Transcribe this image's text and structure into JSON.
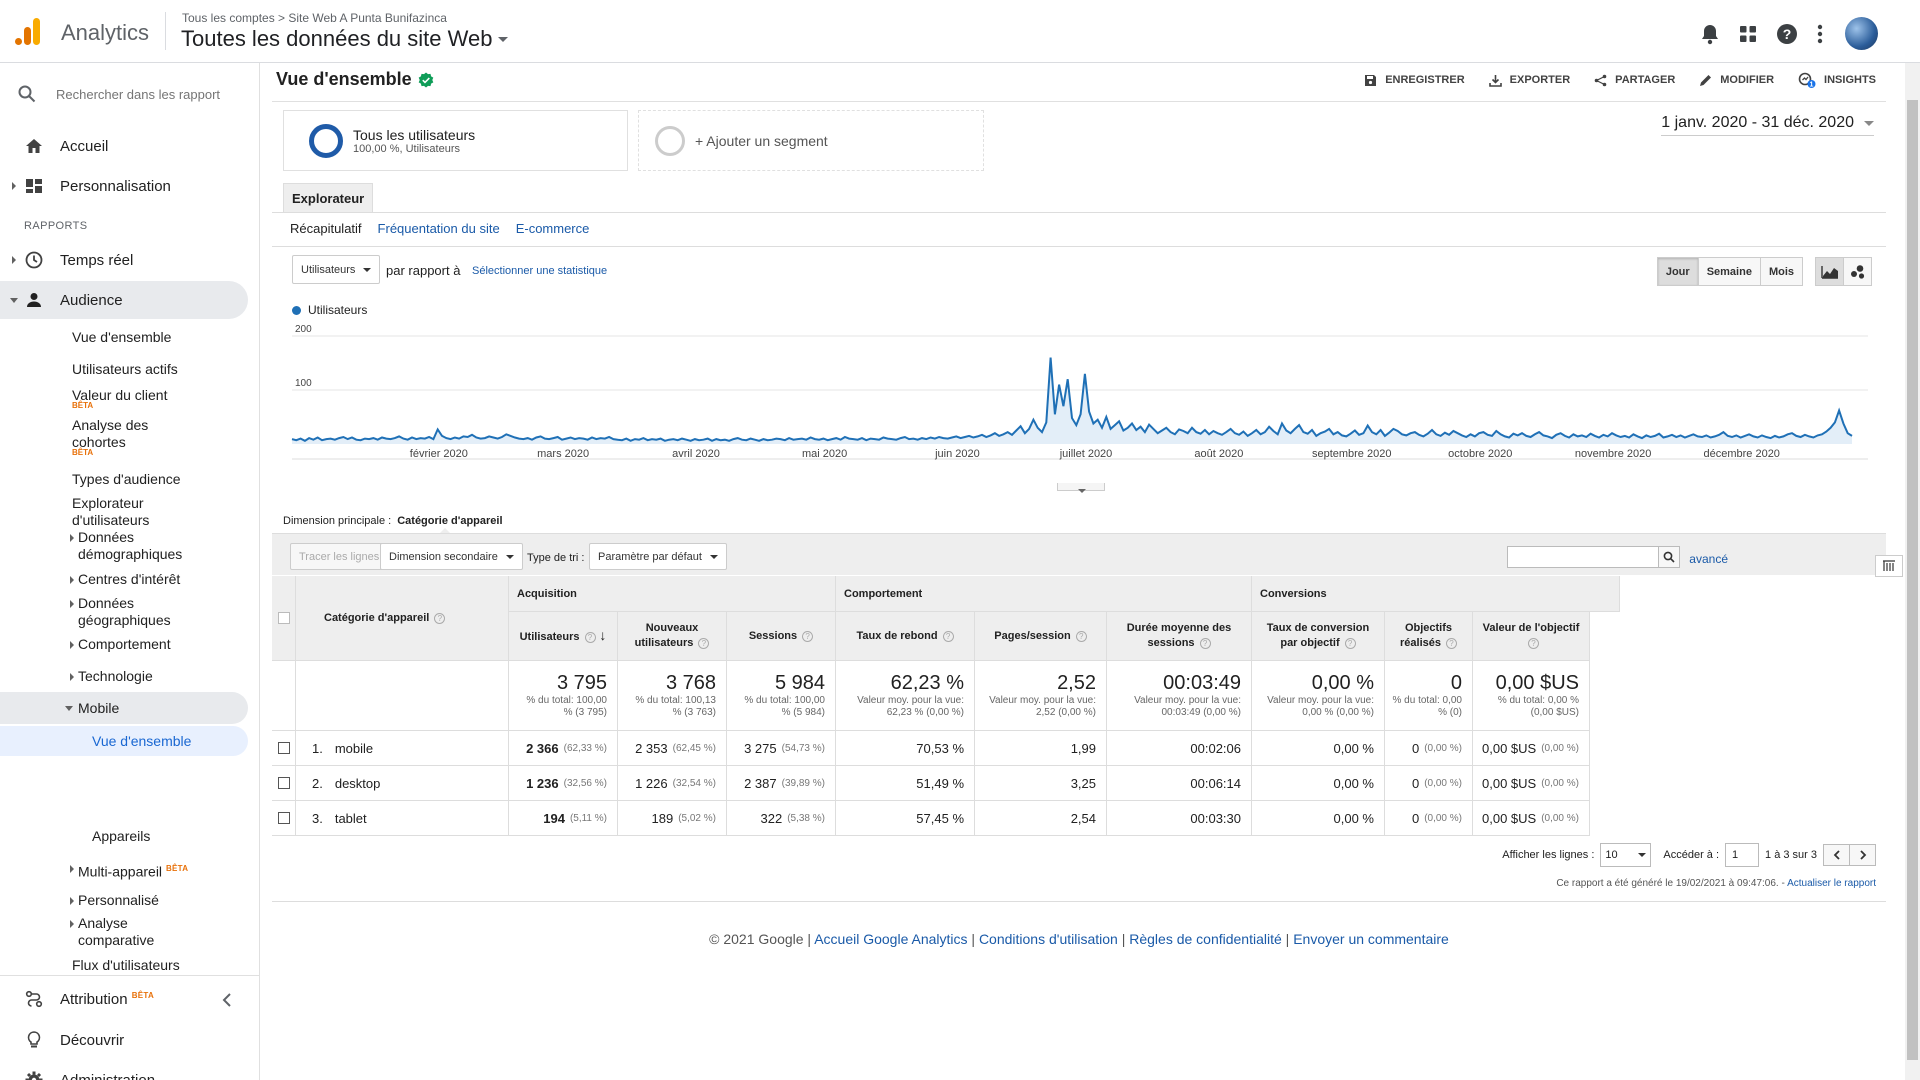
{
  "header": {
    "app_name": "Analytics",
    "breadcrumb": "Tous les comptes  >  Site Web A Punta Bunifazinca",
    "view_name": "Toutes les données du site Web"
  },
  "sidebar": {
    "search_placeholder": "Rechercher dans les rapport",
    "home": "Accueil",
    "customization": "Personnalisation",
    "section_reports": "RAPPORTS",
    "realtime": "Temps réel",
    "audience": "Audience",
    "audience_items": {
      "overview": "Vue d'ensemble",
      "active_users": "Utilisateurs actifs",
      "lifetime_value": "Valeur du client",
      "cohort": "Analyse des cohortes",
      "audiences": "Types d'audience",
      "user_explorer": "Explorateur d'utilisateurs",
      "demographics": "Données démographiques",
      "interests": "Centres d'intérêt",
      "geo": "Données géographiques",
      "behavior": "Comportement",
      "technology": "Technologie",
      "mobile": "Mobile",
      "mobile_overview": "Vue d'ensemble",
      "devices": "Appareils",
      "cross_device": "Multi-appareil",
      "custom": "Personnalisé",
      "benchmarking": "Analyse comparative",
      "users_flow": "Flux d'utilisateurs"
    },
    "beta": "BÊTA",
    "attribution": "Attribution",
    "discover": "Découvrir",
    "admin": "Administration"
  },
  "page": {
    "title": "Vue d'ensemble",
    "toolbar": {
      "save": "ENREGISTRER",
      "export": "EXPORTER",
      "share": "PARTAGER",
      "edit": "MODIFIER",
      "insights": "INSIGHTS",
      "insights_badge": "1"
    },
    "segment1": {
      "title": "Tous les utilisateurs",
      "subtitle": "100,00 %, Utilisateurs"
    },
    "segment2": "+ Ajouter un segment",
    "date_range": "1 janv. 2020 - 31 déc. 2020",
    "explorer_tab": "Explorateur",
    "subtabs": [
      "Récapitulatif",
      "Fréquentation du site",
      "E-commerce"
    ],
    "metric": "Utilisateurs",
    "vs": "par rapport à",
    "select_metric": "Sélectionner une statistique",
    "period": [
      "Jour",
      "Semaine",
      "Mois"
    ]
  },
  "chart_data": {
    "type": "area",
    "series": [
      {
        "name": "Utilisateurs",
        "color": "#1f70b6"
      }
    ],
    "y_ticks": [
      "200",
      "100"
    ],
    "ylim": [
      0,
      200
    ],
    "x_labels": [
      "février 2020",
      "mars 2020",
      "avril 2020",
      "mai 2020",
      "juin 2020",
      "juillet 2020",
      "août 2020",
      "septembre 2020",
      "octobre 2020",
      "novembre 2020",
      "décembre 2020"
    ],
    "values": [
      9,
      7,
      10,
      6,
      11,
      8,
      12,
      7,
      9,
      10,
      8,
      11,
      13,
      9,
      12,
      8,
      7,
      10,
      9,
      11,
      8,
      12,
      10,
      9,
      11,
      14,
      10,
      8,
      12,
      9,
      11,
      10,
      13,
      9,
      27,
      15,
      11,
      9,
      12,
      10,
      14,
      13,
      17,
      12,
      10,
      11,
      14,
      12,
      10,
      13,
      18,
      15,
      12,
      10,
      9,
      11,
      8,
      12,
      14,
      10,
      9,
      11,
      13,
      8,
      10,
      12,
      9,
      11,
      10,
      8,
      12,
      9,
      11,
      10,
      13,
      9,
      8,
      7,
      10,
      6,
      9,
      8,
      11,
      7,
      9,
      8,
      10,
      6,
      8,
      9,
      7,
      10,
      8,
      6,
      9,
      7,
      8,
      10,
      6,
      9,
      7,
      8,
      6,
      9,
      11,
      8,
      7,
      10,
      8,
      6,
      9,
      7,
      8,
      10,
      9,
      7,
      11,
      8,
      9,
      10,
      8,
      12,
      9,
      8,
      10,
      7,
      9,
      11,
      8,
      13,
      10,
      9,
      8,
      11,
      7,
      10,
      9,
      8,
      12,
      10,
      9,
      8,
      11,
      13,
      9,
      10,
      8,
      11,
      9,
      12,
      10,
      13,
      11,
      10,
      12,
      14,
      11,
      13,
      15,
      12,
      14,
      17,
      13,
      16,
      20,
      15,
      18,
      22,
      17,
      25,
      33,
      20,
      28,
      45,
      30,
      22,
      40,
      160,
      55,
      110,
      70,
      120,
      48,
      35,
      55,
      130,
      60,
      38,
      45,
      30,
      50,
      28,
      35,
      42,
      25,
      30,
      38,
      26,
      32,
      22,
      36,
      28,
      20,
      25,
      30,
      22,
      18,
      27,
      24,
      20,
      30,
      22,
      19,
      26,
      18,
      24,
      20,
      17,
      22,
      28,
      20,
      17,
      23,
      15,
      20,
      26,
      18,
      22,
      32,
      24,
      18,
      38,
      25,
      20,
      28,
      35,
      22,
      19,
      26,
      15,
      20,
      23,
      28,
      18,
      22,
      16,
      14,
      19,
      25,
      17,
      20,
      34,
      22,
      18,
      26,
      15,
      21,
      28,
      24,
      18,
      16,
      20,
      22,
      17,
      14,
      19,
      26,
      18,
      15,
      21,
      17,
      24,
      20,
      16,
      13,
      18,
      14,
      20,
      22,
      17,
      15,
      24,
      18,
      14,
      12,
      19,
      16,
      20,
      15,
      13,
      18,
      22,
      16,
      14,
      11,
      17,
      20,
      15,
      12,
      18,
      14,
      16,
      13,
      19,
      15,
      12,
      17,
      14,
      20,
      16,
      13,
      15,
      12,
      18,
      14,
      11,
      16,
      13,
      15,
      19,
      12,
      14,
      17,
      13,
      16,
      12,
      15,
      18,
      14,
      13,
      16,
      12,
      14,
      17,
      22,
      15,
      13,
      16,
      12,
      15,
      18,
      14,
      12,
      16,
      13,
      11,
      15,
      12,
      14,
      18,
      20,
      15,
      13,
      17,
      14,
      12,
      16,
      18,
      23,
      30,
      40,
      62,
      38,
      20,
      15
    ]
  },
  "table": {
    "dim_label": "Dimension principale :",
    "dim_value": "Catégorie d'appareil",
    "plot_rows": "Tracer les lignes",
    "secondary": "Dimension secondaire",
    "sort_label": "Type de tri :",
    "sort_value": "Paramètre par défaut",
    "advanced": "avancé",
    "groups": [
      "Acquisition",
      "Comportement",
      "Conversions"
    ],
    "dim_header": "Catégorie d'appareil",
    "columns": [
      "Utilisateurs",
      "Nouveaux utilisateurs",
      "Sessions",
      "Taux de rebond",
      "Pages/session",
      "Durée moyenne des sessions",
      "Taux de conversion par objectif",
      "Objectifs réalisés",
      "Valeur de l'objectif"
    ],
    "totals": [
      {
        "big": "3 795",
        "sub": "% du total: 100,00 % (3 795)"
      },
      {
        "big": "3 768",
        "sub": "% du total: 100,13 % (3 763)"
      },
      {
        "big": "5 984",
        "sub": "% du total: 100,00 % (5 984)"
      },
      {
        "big": "62,23 %",
        "sub": "Valeur moy. pour la vue: 62,23 % (0,00 %)"
      },
      {
        "big": "2,52",
        "sub": "Valeur moy. pour la vue: 2,52 (0,00 %)"
      },
      {
        "big": "00:03:49",
        "sub": "Valeur moy. pour la vue: 00:03:49 (0,00 %)"
      },
      {
        "big": "0,00 %",
        "sub": "Valeur moy. pour la vue: 0,00 % (0,00 %)"
      },
      {
        "big": "0",
        "sub": "% du total: 0,00 % (0)"
      },
      {
        "big": "0,00 $US",
        "sub": "% du total: 0,00 % (0,00 $US)"
      }
    ],
    "rows": [
      {
        "idx": "1.",
        "name": "mobile",
        "users": "2 366",
        "users_pct": "(62,33 %)",
        "new": "2 353",
        "new_pct": "(62,45 %)",
        "sess": "3 275",
        "sess_pct": "(54,73 %)",
        "bounce": "70,53 %",
        "pps": "1,99",
        "dur": "00:02:06",
        "conv": "0,00 %",
        "goals": "0",
        "goals_pct": "(0,00 %)",
        "value": "0,00 $US",
        "value_pct": "(0,00 %)"
      },
      {
        "idx": "2.",
        "name": "desktop",
        "users": "1 236",
        "users_pct": "(32,56 %)",
        "new": "1 226",
        "new_pct": "(32,54 %)",
        "sess": "2 387",
        "sess_pct": "(39,89 %)",
        "bounce": "51,49 %",
        "pps": "3,25",
        "dur": "00:06:14",
        "conv": "0,00 %",
        "goals": "0",
        "goals_pct": "(0,00 %)",
        "value": "0,00 $US",
        "value_pct": "(0,00 %)"
      },
      {
        "idx": "3.",
        "name": "tablet",
        "users": "194",
        "users_pct": "(5,11 %)",
        "new": "189",
        "new_pct": "(5,02 %)",
        "sess": "322",
        "sess_pct": "(5,38 %)",
        "bounce": "57,45 %",
        "pps": "2,54",
        "dur": "00:03:30",
        "conv": "0,00 %",
        "goals": "0",
        "goals_pct": "(0,00 %)",
        "value": "0,00 $US",
        "value_pct": "(0,00 %)"
      }
    ],
    "show_rows_label": "Afficher les lignes :",
    "show_rows_value": "10",
    "goto_label": "Accéder à :",
    "goto_value": "1",
    "range": "1 à 3 sur 3",
    "generated": "Ce rapport a été généré le 19/02/2021 à 09:47:06. -",
    "refresh": "Actualiser le rapport"
  },
  "footer": {
    "copyright": "© 2021 Google |",
    "links": [
      "Accueil Google Analytics",
      "Conditions d'utilisation",
      "Règles de confidentialité",
      "Envoyer un commentaire"
    ]
  },
  "colors": {
    "accent": "#1f70b6",
    "logo_orange": "#f9ab00",
    "logo_dark": "#e37400",
    "ok_green": "#0f9d58"
  }
}
